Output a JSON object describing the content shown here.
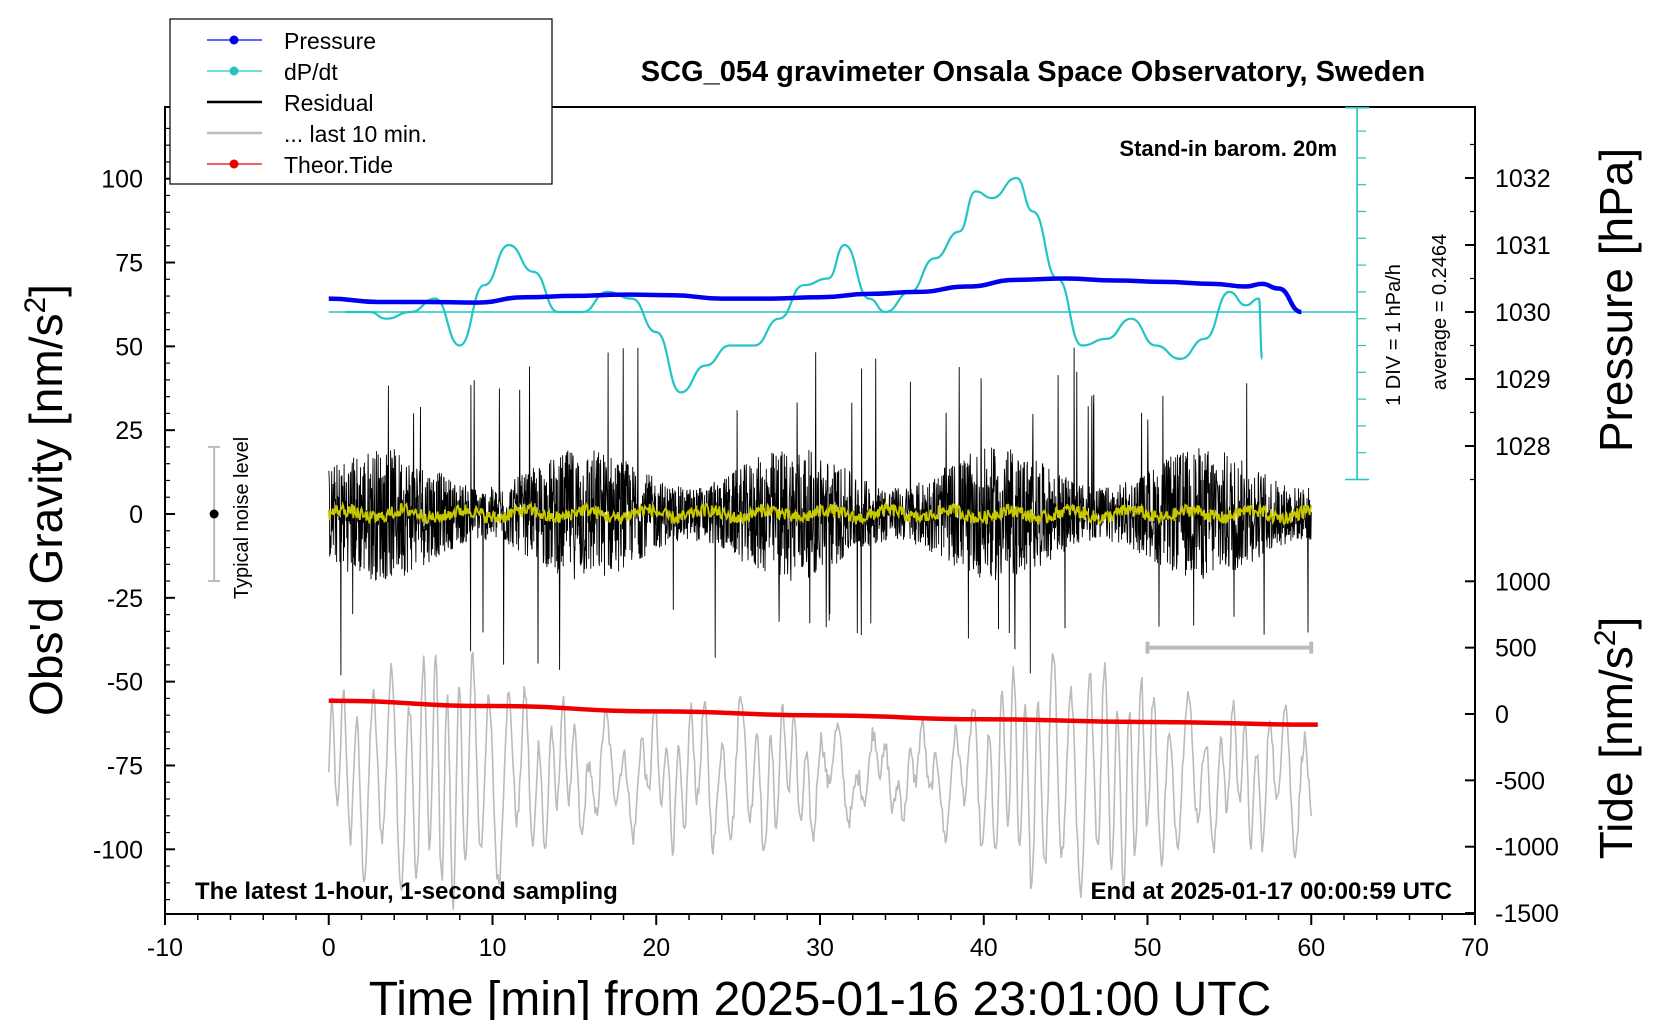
{
  "chart_data": {
    "type": "line",
    "title": "SCG_054 gravimeter Onsala Space Observatory, Sweden",
    "xlabel": "Time [min] from 2025-01-16 23:01:00 UTC",
    "xlim": [
      -10,
      70
    ],
    "xticks": [
      -10,
      0,
      10,
      20,
      30,
      40,
      50,
      60,
      70
    ],
    "xtick_labels": [
      "-10",
      "0",
      "10",
      "20",
      "30",
      "40",
      "50",
      "60",
      "70"
    ],
    "left_axis": {
      "label": "Obs'd Gravity [nm/s",
      "label_sup": "2",
      "label_end": "]",
      "ylim": [
        -120,
        120
      ],
      "ticks": [
        100,
        75,
        50,
        25,
        0,
        -25,
        -50,
        -75,
        -100
      ],
      "tick_labels": [
        "100",
        "75",
        "50",
        "25",
        "0",
        "-25",
        "-50",
        "-75",
        "-100"
      ]
    },
    "right_pressure_axis": {
      "label": "Pressure [hPa]",
      "ticks": [
        1032,
        1031,
        1030,
        1029,
        1028
      ],
      "tick_labels": [
        "1032",
        "1031",
        "1030",
        "1029",
        "1028"
      ]
    },
    "right_tide_axis": {
      "label": "Tide [nm/s",
      "label_sup": "2",
      "label_end": "]",
      "ticks": [
        1000,
        500,
        0,
        -500,
        -1000,
        -1500
      ],
      "tick_labels": [
        "1000",
        "500",
        "0",
        "-500",
        "-1000",
        "-1500"
      ]
    },
    "legend": {
      "position": "top-left",
      "entries": [
        {
          "label": "Pressure",
          "color": "#0000ee",
          "marker": "dot"
        },
        {
          "label": "dP/dt",
          "color": "#22c4c4",
          "marker": "dot"
        },
        {
          "label": "Residual",
          "color": "#000000",
          "marker": "line"
        },
        {
          "label": "... last 10 min.",
          "color": "#bbbbbb",
          "marker": "line"
        },
        {
          "label": "Theor.Tide",
          "color": "#ee0000",
          "marker": "dot"
        }
      ]
    },
    "annotations": {
      "stand_in": "Stand-in barom. 20m",
      "dpdt_scale": "1 DIV = 1 hPa/h",
      "dpdt_average": "average = 0.2464",
      "noise_label": "Typical noise level",
      "bottom_left": "The latest 1-hour, 1-second sampling",
      "bottom_right": "End at 2025-01-17 00:00:59 UTC"
    },
    "noise_level_range": [
      -20,
      20
    ],
    "series": [
      {
        "name": "Pressure",
        "axis": "pressure",
        "color": "#0000ee",
        "x": [
          0,
          3,
          6,
          9,
          12,
          15,
          18,
          21,
          24,
          27,
          30,
          33,
          36,
          39,
          42,
          45,
          48,
          51,
          54,
          56,
          57,
          58,
          59.4
        ],
        "values": [
          1030.2,
          1030.15,
          1030.15,
          1030.14,
          1030.22,
          1030.24,
          1030.26,
          1030.25,
          1030.2,
          1030.2,
          1030.22,
          1030.27,
          1030.3,
          1030.38,
          1030.48,
          1030.5,
          1030.47,
          1030.45,
          1030.42,
          1030.38,
          1030.42,
          1030.35,
          1030.0
        ]
      },
      {
        "name": "dP/dt",
        "axis": "pressure",
        "color": "#22c4c4",
        "x": [
          1,
          2.5,
          3.5,
          5,
          6.5,
          8,
          9.5,
          11,
          12.5,
          14,
          15.5,
          17,
          18.5,
          20,
          21.5,
          23,
          24.5,
          26,
          27.5,
          29,
          30.5,
          31.5,
          33,
          34,
          35.5,
          37,
          38.5,
          39.5,
          40.5,
          42,
          43,
          44.5,
          46,
          47.5,
          49,
          50.5,
          52,
          53.5,
          55,
          56,
          56.8,
          57
        ],
        "values": [
          1030,
          1030.0,
          1029.9,
          1030.0,
          1030.2,
          1029.5,
          1030.4,
          1031.0,
          1030.6,
          1030.0,
          1030.0,
          1030.3,
          1030.2,
          1029.7,
          1028.8,
          1029.2,
          1029.5,
          1029.5,
          1029.9,
          1030.4,
          1030.5,
          1031.0,
          1030.2,
          1030.0,
          1030.3,
          1030.8,
          1031.2,
          1031.8,
          1031.7,
          1032.0,
          1031.5,
          1030.5,
          1029.5,
          1029.6,
          1029.9,
          1029.5,
          1029.3,
          1029.6,
          1030.3,
          1030.1,
          1030.2,
          1029.3
        ]
      },
      {
        "name": "Residual",
        "axis": "gravity",
        "color": "#000000",
        "x_range": [
          0,
          60
        ],
        "typical_amplitude": 20,
        "peak_range": [
          -50,
          53
        ]
      },
      {
        "name": "Residual filtered",
        "axis": "gravity",
        "color": "#c8c800",
        "x_range": [
          0,
          60
        ],
        "typical_amplitude": 2
      },
      {
        "name": "... last 10 min.",
        "axis": "gravity",
        "color": "#bbbbbb",
        "x_range": [
          0,
          60
        ],
        "range": [
          -118,
          -38
        ]
      },
      {
        "name": "Theor.Tide",
        "axis": "tide",
        "color": "#ee0000",
        "x": [
          0,
          10,
          20,
          30,
          40,
          50,
          60.4
        ],
        "values": [
          100,
          60,
          20,
          -10,
          -40,
          -60,
          -80
        ]
      }
    ],
    "last_10min_marker": {
      "x_range": [
        50,
        60
      ],
      "tide_value": 500,
      "color": "#bbbbbb"
    }
  }
}
